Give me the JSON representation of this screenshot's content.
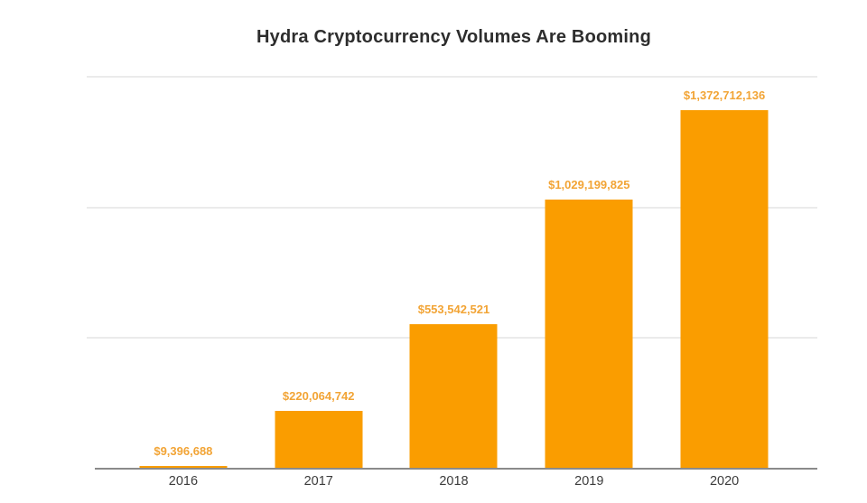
{
  "chart_data": {
    "type": "bar",
    "title": "Hydra Cryptocurrency Volumes Are Booming",
    "categories": [
      "2016",
      "2017",
      "2018",
      "2019",
      "2020"
    ],
    "values": [
      9396688,
      220064742,
      553542521,
      1029199825,
      1372712136
    ],
    "value_labels": [
      "$9,396,688",
      "$220,064,742",
      "$553,542,521",
      "$1,029,199,825",
      "$1,372,712,136"
    ],
    "xlabel": "",
    "ylabel": "",
    "ylim": [
      0,
      1500000000
    ],
    "gridline_values": [
      500000000,
      1000000000,
      1500000000
    ],
    "grid": true,
    "legend": "none",
    "colors": {
      "bar": "#FA9D00",
      "value_label": "#F2A435",
      "title_text": "#2d2d2d",
      "axis_line": "#8a8a8a",
      "gridline": "#ebebeb",
      "tick_label": "#3c3c3c",
      "background": "#ffffff"
    }
  }
}
